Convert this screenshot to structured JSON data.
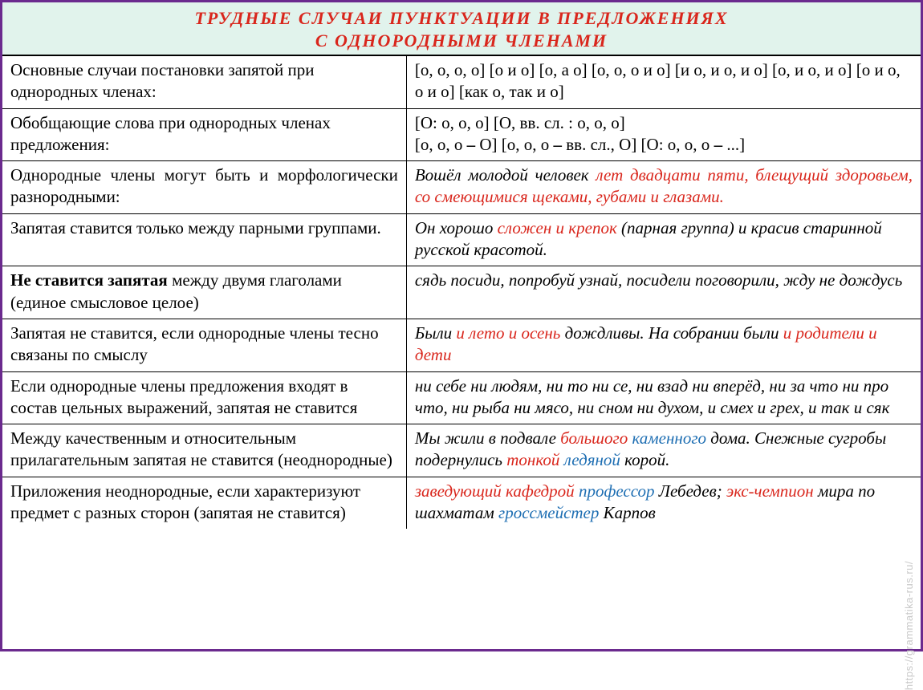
{
  "title": {
    "line1": "ТРУДНЫЕ  СЛУЧАИ  ПУНКТУАЦИИ  В ПРЕДЛОЖЕНИЯХ",
    "line2": "С ОДНОРОДНЫМИ  ЧЛЕНАМИ"
  },
  "watermark": "https://grammatika-rus.ru/",
  "colors": {
    "border": "#6b2a8e",
    "header_bg": "#e1f3ec",
    "header_text": "#d9261c",
    "emph_red": "#d9261c",
    "emph_blue": "#1f6fb3",
    "text": "#000000"
  },
  "rows": [
    {
      "left": [
        {
          "t": "Основные случаи постановки запятой при однородных членах:"
        }
      ],
      "right": [
        {
          "t": "[о, о, о, о] [о и о] [о, а о] [о, о, о и о] [и о, и о, и о] [о, и о, и о] [о и о, о и о] [как о, так и о]"
        }
      ],
      "left_justify": false,
      "right_italic": false
    },
    {
      "left": [
        {
          "t": "Обобщающие слова при однородных членах предложения:"
        }
      ],
      "right": [
        {
          "t": "[О: о, о, о] [О, вв. сл. : о, о, о]"
        },
        {
          "br": true
        },
        {
          "t": "[о, о, о "
        },
        {
          "t": "–",
          "bold": true
        },
        {
          "t": " О] [о, о, о "
        },
        {
          "t": "–",
          "bold": true
        },
        {
          "t": " вв. сл., О] [О: о, о, о "
        },
        {
          "t": "–",
          "bold": true
        },
        {
          "t": " ...]"
        }
      ],
      "left_justify": false,
      "right_italic": false
    },
    {
      "left": [
        {
          "t": "Однородные члены могут быть и морфологически разнородными:"
        }
      ],
      "right": [
        {
          "t": "Вошёл молодой человек ",
          "ital": true
        },
        {
          "t": "лет двадцати пяти, блещущий здоровьем, со смеющимися щеками, губами и глазами.",
          "ital": true,
          "red": true
        }
      ],
      "left_justify": true,
      "right_italic": true,
      "right_justify": true
    },
    {
      "left": [
        {
          "t": "Запятая ставится только между парными группами."
        }
      ],
      "right": [
        {
          "t": "Он хорошо ",
          "ital": true
        },
        {
          "t": "сложен и крепок",
          "ital": true,
          "red": true
        },
        {
          "t": " (парная группа) и красив старинной русской красотой.",
          "ital": true
        }
      ],
      "right_italic": true
    },
    {
      "left": [
        {
          "t": "Не ставится запятая",
          "bold": true
        },
        {
          "t": " между двумя глаголами (единое смысловое целое)"
        }
      ],
      "right": [
        {
          "t": "сядь посиди, попробуй узнай, посидели поговорили, жду не дождусь",
          "ital": true
        }
      ],
      "right_italic": true
    },
    {
      "left": [
        {
          "t": "Запятая не ставится,  если однородные члены тесно связаны по смыслу"
        }
      ],
      "right": [
        {
          "t": "Были ",
          "ital": true
        },
        {
          "t": "и лето и осень",
          "ital": true,
          "red": true
        },
        {
          "t": " дождливы. На собрании были  ",
          "ital": true
        },
        {
          "t": "и родители и дети",
          "ital": true,
          "red": true
        }
      ],
      "right_italic": true
    },
    {
      "left": [
        {
          "t": "Если однородные члены предложения входят в состав цельных выражений, запятая не ставится"
        }
      ],
      "right": [
        {
          "t": "ни себе ни людям, ни то ни се, ни взад ни вперёд, ни за что ни про что, ни рыба ни мясо, ни сном ни духом, и смех и грех, и так и сяк",
          "ital": true
        }
      ],
      "right_italic": true
    },
    {
      "left": [
        {
          "t": "Между качественным и относительным прилагательным запятая не ставится (неоднородные)"
        }
      ],
      "right": [
        {
          "t": "Мы жили в подвале ",
          "ital": true
        },
        {
          "t": "большого ",
          "ital": true,
          "red": true
        },
        {
          "t": "каменного",
          "ital": true,
          "blue": true
        },
        {
          "t": " дома. Снежные сугробы подернулись ",
          "ital": true
        },
        {
          "t": "тонкой",
          "ital": true,
          "red": true
        },
        {
          "t": " ",
          "ital": true
        },
        {
          "t": "ледяной",
          "ital": true,
          "blue": true
        },
        {
          "t": " корой.",
          "ital": true
        }
      ],
      "right_italic": true
    },
    {
      "left": [
        {
          "t": "Приложения неоднородные, если характеризуют предмет с разных сторон (запятая не ставится)"
        }
      ],
      "right": [
        {
          "t": "заведующий кафедрой ",
          "ital": true,
          "red": true
        },
        {
          "t": "профессор ",
          "ital": true,
          "blue": true
        },
        {
          "t": "Лебедев; ",
          "ital": true
        },
        {
          "t": "экс-чемпион ",
          "ital": true,
          "red": true
        },
        {
          "t": "мира по шахматам ",
          "ital": true
        },
        {
          "t": "гроссмейстер",
          "ital": true,
          "blue": true
        },
        {
          "t": " Карпов",
          "ital": true
        }
      ],
      "right_italic": true
    }
  ]
}
